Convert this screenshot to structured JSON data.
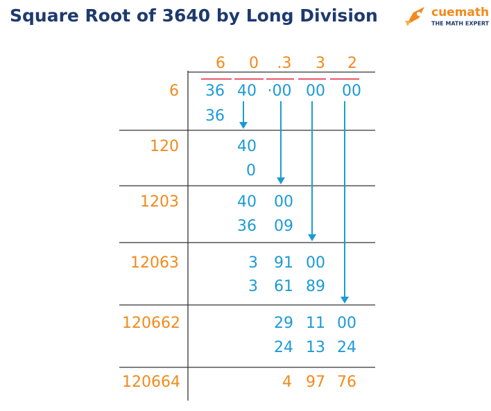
{
  "header": {
    "title": "Square Root of 3640 by Long Division",
    "logo_name": "cuemath",
    "logo_tagline": "THE MATH EXPERT"
  },
  "quotient": [
    "6",
    "0",
    ".3",
    "3",
    "2"
  ],
  "dividend": [
    "36",
    "40",
    "·00",
    "00",
    "00"
  ],
  "divisors": [
    "6",
    "120",
    "1203",
    "12063",
    "120662",
    "120664"
  ],
  "work": [
    [
      "36"
    ],
    [
      "40"
    ],
    [
      "0"
    ],
    [
      "40",
      "00"
    ],
    [
      "36",
      "09"
    ],
    [
      "3",
      "91",
      "00"
    ],
    [
      "3",
      "61",
      "89"
    ],
    [
      "29",
      "11",
      "00"
    ],
    [
      "24",
      "13",
      "24"
    ],
    [
      "4",
      "97",
      "76"
    ]
  ]
}
